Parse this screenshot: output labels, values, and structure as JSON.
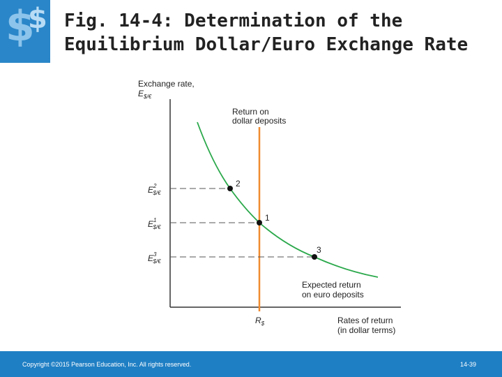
{
  "header": {
    "title_lines": [
      "Fig. 14-4: Determination of the",
      "Equilibrium Dollar/Euro Exchange Rate"
    ]
  },
  "diagram": {
    "y_axis_label": {
      "text": "Exchange rate,",
      "symbol": "E",
      "subscript": "$/€"
    },
    "dollar_return_label": [
      "Return on",
      "dollar deposits"
    ],
    "levels": [
      {
        "symbol": "E",
        "superscript": "2",
        "subscript": "$/€",
        "point": "2"
      },
      {
        "symbol": "E",
        "superscript": "1",
        "subscript": "$/€",
        "point": "1"
      },
      {
        "symbol": "E",
        "superscript": "3",
        "subscript": "$/€",
        "point": "3"
      }
    ],
    "euro_return_label": [
      "Expected return",
      "on euro deposits"
    ],
    "rate_label": {
      "symbol": "R",
      "subscript": "$"
    },
    "x_axis_label": [
      "Rates of return",
      "(in dollar terms)"
    ]
  },
  "footer": {
    "copyright": "Copyright ©2015 Pearson Education, Inc. All rights reserved.",
    "page": "14-39"
  }
}
